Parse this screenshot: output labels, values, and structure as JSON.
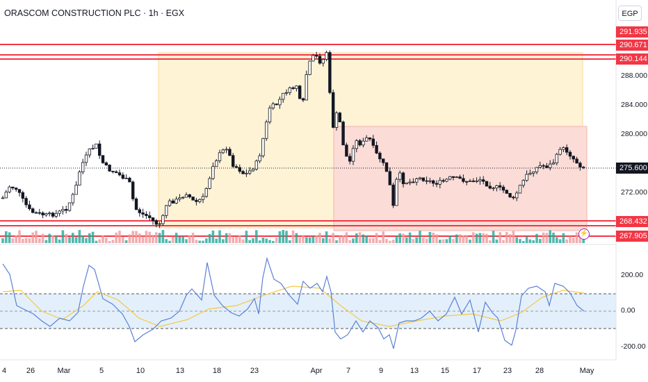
{
  "header": {
    "title": "ORASCOM CONSTRUCTION PLC · 1h · EGX",
    "currency": "EGP"
  },
  "price_axis": {
    "ticks": [
      "288.000",
      "284.000",
      "280.000",
      "272.000"
    ],
    "level_tags": [
      "291.935",
      "290.671",
      "290.144",
      "268.432",
      "267.905"
    ],
    "last_price": "275.600"
  },
  "oscillator_axis": {
    "ticks": [
      "200.00",
      "0.00",
      "-200.00"
    ]
  },
  "time_axis": {
    "labels": [
      "4",
      "26",
      "Mar",
      "5",
      "10",
      "13",
      "18",
      "23",
      "Apr",
      "7",
      "9",
      "13",
      "15",
      "17",
      "23",
      "28",
      "May"
    ]
  },
  "icons": {
    "alert": "lightning-icon"
  },
  "colors": {
    "level_line": "#f23645",
    "zone_yellow": "#fff3d6",
    "zone_red": "#fce0dc",
    "oscillator_line": "#5b7fd6",
    "signal_line": "#f5c842",
    "band_fill": "#e3f0fb",
    "volume_up": "#26a69a",
    "volume_down": "#ef9a9a"
  }
}
